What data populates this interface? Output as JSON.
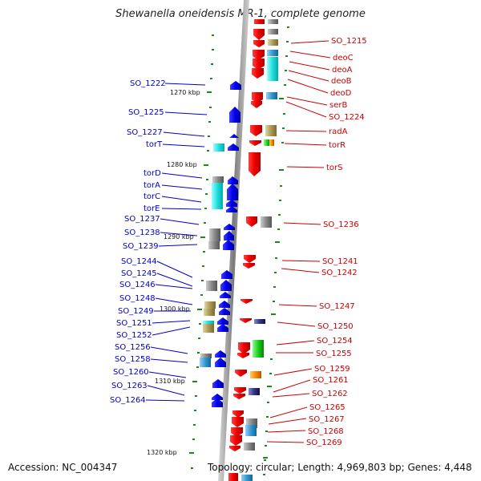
{
  "title": "Shewanella oneidensis MR-1, complete genome",
  "footer": {
    "accession": "Accession: NC_004347",
    "summary": "Topology: circular; Length: 4,969,803 bp; Genes: 4,448"
  },
  "colors": {
    "left_strand": "#0000cc",
    "right_strand": "#cc0000",
    "backbone": "#808080"
  },
  "kbp_marks": [
    "1270 kbp",
    "1280 kbp",
    "1290 kbp",
    "1300 kbp",
    "1310 kbp",
    "1320 kbp"
  ],
  "left_genes": [
    "SO_1222",
    "SO_1225",
    "SO_1227",
    "torT",
    "torD",
    "torA",
    "torC",
    "torE",
    "SO_1237",
    "SO_1238",
    "SO_1239",
    "SO_1244",
    "SO_1245",
    "SO_1246",
    "SO_1248",
    "SO_1249",
    "SO_1251",
    "SO_1252",
    "SO_1256",
    "SO_1258",
    "SO_1260",
    "SO_1263",
    "SO_1264"
  ],
  "right_genes": [
    "SO_1215",
    "deoC",
    "deoA",
    "deoB",
    "deoD",
    "serB",
    "SO_1224",
    "radA",
    "torR",
    "torS",
    "SO_1236",
    "SO_1241",
    "SO_1242",
    "SO_1247",
    "SO_1250",
    "SO_1254",
    "SO_1255",
    "SO_1259",
    "SO_1261",
    "SO_1262",
    "SO_1265",
    "SO_1267",
    "SO_1268",
    "SO_1269"
  ]
}
